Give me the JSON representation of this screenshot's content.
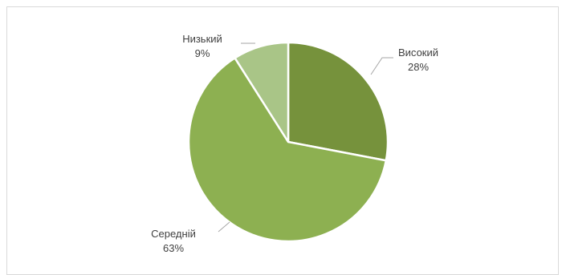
{
  "chart_data": {
    "type": "pie",
    "title": "",
    "slices": [
      {
        "label": "Високий",
        "value": 28,
        "value_label": "28%",
        "color": "#76923c"
      },
      {
        "label": "Середній",
        "value": 63,
        "value_label": "63%",
        "color": "#8db051"
      },
      {
        "label": "Низький",
        "value": 9,
        "value_label": "9%",
        "color": "#a9c587"
      }
    ],
    "start_angle_deg": 0,
    "direction": "clockwise",
    "legend": "none",
    "leader_line_color": "#a6a6a6",
    "slice_border_color": "#ffffff"
  }
}
